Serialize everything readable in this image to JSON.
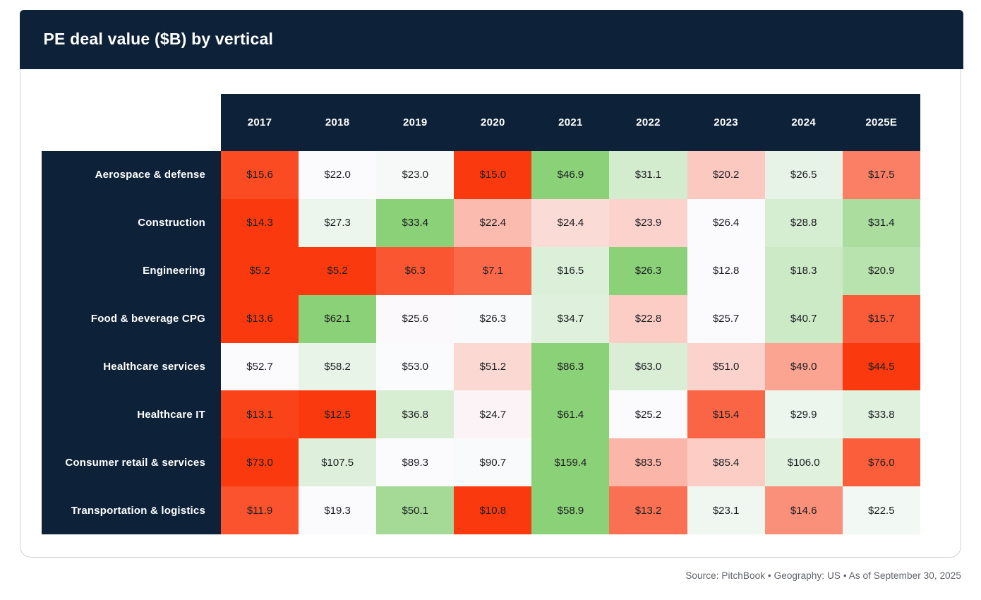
{
  "title": "PE deal value ($B) by vertical",
  "footer": {
    "text": "Source: PitchBook  •  Geography: US  •  As of September 30, 2025"
  },
  "colors": {
    "header_bg": "#0d2138",
    "card_border": "#cdd1d6",
    "cell_text": "#1c1e21",
    "footer_text": "#5f6368"
  },
  "chart_data": {
    "type": "heatmap",
    "title": "PE deal value ($B) by vertical",
    "columns": [
      "2017",
      "2018",
      "2019",
      "2020",
      "2021",
      "2022",
      "2023",
      "2024",
      "2025E"
    ],
    "rows": [
      "Aerospace & defense",
      "Construction",
      "Engineering",
      "Food & beverage CPG",
      "Healthcare services",
      "Healthcare IT",
      "Consumer retail & services",
      "Transportation & logistics"
    ],
    "values": [
      [
        15.6,
        22.0,
        23.0,
        15.0,
        46.9,
        31.1,
        20.2,
        26.5,
        17.5
      ],
      [
        14.3,
        27.3,
        33.4,
        22.4,
        24.4,
        23.9,
        26.4,
        28.8,
        31.4
      ],
      [
        5.2,
        5.2,
        6.3,
        7.1,
        16.5,
        26.3,
        12.8,
        18.3,
        20.9
      ],
      [
        13.6,
        62.1,
        25.6,
        26.3,
        34.7,
        22.8,
        25.7,
        40.7,
        15.7
      ],
      [
        52.7,
        58.2,
        53.0,
        51.2,
        86.3,
        63.0,
        51.0,
        49.0,
        44.5
      ],
      [
        13.1,
        12.5,
        36.8,
        24.7,
        61.4,
        25.2,
        15.4,
        29.9,
        33.8
      ],
      [
        73.0,
        107.5,
        89.3,
        90.7,
        159.4,
        83.5,
        85.4,
        106.0,
        76.0
      ],
      [
        11.9,
        19.3,
        50.1,
        10.8,
        58.9,
        13.2,
        23.1,
        14.6,
        22.5
      ]
    ],
    "value_prefix": "$",
    "value_decimals": 1,
    "legend": "none",
    "grid": "off",
    "color_scale": {
      "mode": "row_diverging_median",
      "low": "#fa3a0e",
      "mid": "#fbfbfe",
      "high": "#8bd178"
    }
  }
}
